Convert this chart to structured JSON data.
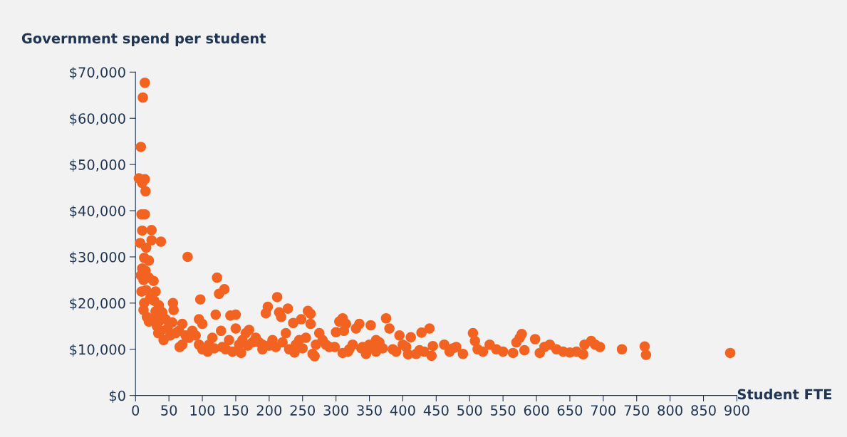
{
  "chart_data": {
    "type": "scatter",
    "ylabel": "Government spend per student",
    "xlabel": "Student FTE",
    "marker": "circle",
    "grid": false,
    "legend": false,
    "xlim": [
      0,
      900
    ],
    "xticks": [
      0,
      50,
      100,
      150,
      200,
      250,
      300,
      350,
      400,
      450,
      500,
      550,
      600,
      650,
      700,
      750,
      800,
      850,
      900
    ],
    "ylim": [
      0,
      70000
    ],
    "yticks": [
      {
        "value": 0,
        "label": "$0"
      },
      {
        "value": 10000,
        "label": "$10,000"
      },
      {
        "value": 20000,
        "label": "$20,000"
      },
      {
        "value": 30000,
        "label": "$30,000"
      },
      {
        "value": 40000,
        "label": "$40,000"
      },
      {
        "value": 50000,
        "label": "$50,000"
      },
      {
        "value": 60000,
        "label": "$60,000"
      },
      {
        "value": 70000,
        "label": "$70,000"
      }
    ],
    "series": [
      {
        "color": "#f26322",
        "x": [
          14,
          11,
          8,
          5,
          14,
          10,
          15,
          9,
          14,
          10,
          24,
          7,
          24,
          38,
          16,
          13,
          20,
          78,
          10,
          15,
          8,
          12,
          20,
          27,
          9,
          16,
          30,
          22,
          28,
          13,
          35,
          12,
          30,
          40,
          17,
          28,
          20,
          35,
          45,
          32,
          48,
          38,
          55,
          56,
          57,
          34,
          42,
          52,
          60,
          65,
          70,
          70,
          75,
          80,
          85,
          90,
          66,
          95,
          97,
          100,
          95,
          100,
          108,
          115,
          120,
          122,
          125,
          133,
          128,
          130,
          140,
          142,
          150,
          150,
          145,
          158,
          160,
          165,
          170,
          175,
          180,
          190,
          190,
          195,
          198,
          205,
          210,
          212,
          215,
          218,
          228,
          225,
          230,
          236,
          238,
          245,
          248,
          255,
          258,
          262,
          262,
          265,
          268,
          270,
          275,
          280,
          285,
          298,
          300,
          305,
          310,
          312,
          315,
          310,
          320,
          325,
          330,
          335,
          340,
          345,
          350,
          352,
          360,
          360,
          365,
          375,
          380,
          385,
          390,
          395,
          400,
          405,
          408,
          412,
          420,
          428,
          432,
          440,
          443,
          445,
          462,
          470,
          475,
          480,
          490,
          505,
          508,
          512,
          520,
          530,
          540,
          550,
          565,
          570,
          578,
          575,
          582,
          598,
          605,
          612,
          620,
          630,
          640,
          650,
          660,
          670,
          672,
          682,
          688,
          695,
          728,
          762,
          764,
          890,
          110,
          118,
          135,
          155,
          168,
          185,
          200,
          220,
          240,
          250,
          290,
          318,
          338,
          355,
          370,
          425
        ],
        "values": [
          67700,
          64500,
          53800,
          47000,
          46800,
          46000,
          44200,
          39200,
          39200,
          35700,
          35800,
          33000,
          33600,
          33300,
          32000,
          29800,
          29200,
          30000,
          27500,
          27000,
          26000,
          25000,
          25500,
          24800,
          22500,
          22800,
          22500,
          21000,
          20500,
          20000,
          19500,
          18500,
          18200,
          18000,
          17000,
          16800,
          16000,
          16000,
          16500,
          15000,
          14500,
          14000,
          15800,
          20000,
          18500,
          13500,
          12000,
          13000,
          13500,
          14000,
          15500,
          11000,
          13000,
          12500,
          14000,
          13000,
          10500,
          16500,
          20800,
          15500,
          11000,
          10000,
          9500,
          12500,
          17500,
          25500,
          22000,
          23000,
          14000,
          10500,
          12000,
          17300,
          17500,
          14500,
          9500,
          9200,
          12000,
          13500,
          14200,
          11500,
          12500,
          11000,
          10000,
          17800,
          19200,
          12000,
          10500,
          21300,
          18000,
          17000,
          18800,
          13500,
          10000,
          15700,
          9300,
          12000,
          16500,
          12500,
          18300,
          17700,
          15500,
          9000,
          8500,
          11000,
          13500,
          12000,
          11000,
          10500,
          13700,
          16000,
          16700,
          14000,
          15500,
          9200,
          10000,
          11000,
          14500,
          15500,
          10500,
          9000,
          11000,
          15200,
          12000,
          9500,
          11500,
          16700,
          14500,
          10000,
          9500,
          13000,
          11000,
          10500,
          8900,
          12600,
          9000,
          13600,
          9500,
          14500,
          8600,
          10700,
          11000,
          9500,
          10200,
          10500,
          9000,
          13500,
          11800,
          10000,
          9500,
          11000,
          10000,
          9500,
          9200,
          11500,
          13300,
          12500,
          9800,
          12200,
          9200,
          10500,
          11000,
          10000,
          9500,
          9300,
          9500,
          8900,
          11000,
          11800,
          11000,
          10500,
          10000,
          10600,
          8800,
          9200,
          11000,
          10200,
          10000,
          11000,
          10800,
          11500,
          10800,
          11500,
          11000,
          10200,
          10500,
          9500,
          10200,
          10300,
          10200,
          9800
        ]
      }
    ]
  }
}
